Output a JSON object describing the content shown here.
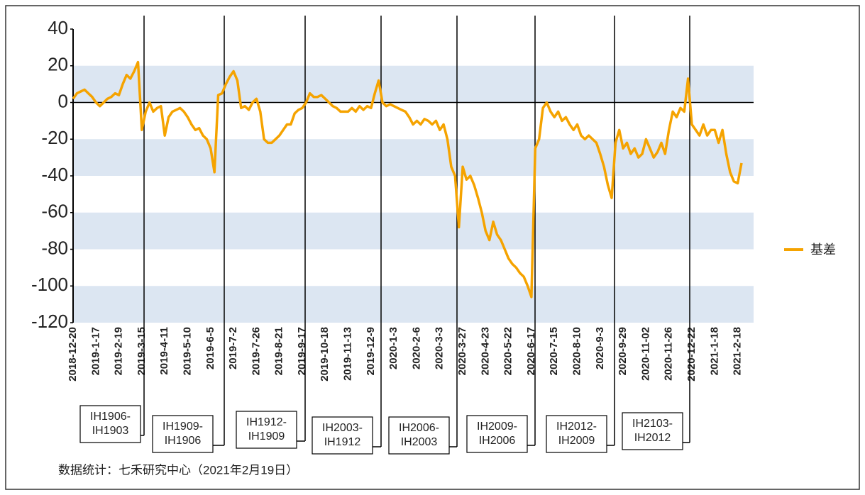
{
  "chart_data": {
    "type": "line",
    "categories": [
      "2018-12-20",
      null,
      null,
      null,
      null,
      null,
      "2019-1-17",
      null,
      null,
      null,
      null,
      null,
      "2019-2-19",
      null,
      null,
      null,
      null,
      null,
      "2019-3-15",
      null,
      null,
      null,
      null,
      null,
      "2019-4-11",
      null,
      null,
      null,
      null,
      null,
      "2019-5-10",
      null,
      null,
      null,
      null,
      null,
      "2019-6-5",
      null,
      null,
      null,
      null,
      null,
      "2019-7-2",
      null,
      null,
      null,
      null,
      null,
      "2019-7-26",
      null,
      null,
      null,
      null,
      null,
      "2019-8-21",
      null,
      null,
      null,
      null,
      null,
      "2019-9-17",
      null,
      null,
      null,
      null,
      null,
      "2019-10-18",
      null,
      null,
      null,
      null,
      null,
      "2019-11-13",
      null,
      null,
      null,
      null,
      null,
      "2019-12-9",
      null,
      null,
      null,
      null,
      null,
      "2020-1-3",
      null,
      null,
      null,
      null,
      null,
      "2020-2-6",
      null,
      null,
      null,
      null,
      null,
      "2020-3-3",
      null,
      null,
      null,
      null,
      null,
      "2020-3-27",
      null,
      null,
      null,
      null,
      null,
      "2020-4-23",
      null,
      null,
      null,
      null,
      null,
      "2020-5-22",
      null,
      null,
      null,
      null,
      null,
      "2020-6-17",
      null,
      null,
      null,
      null,
      null,
      "2020-7-15",
      null,
      null,
      null,
      null,
      null,
      "2020-8-10",
      null,
      null,
      null,
      null,
      null,
      "2020-9-3",
      null,
      null,
      null,
      null,
      null,
      "2020-9-29",
      null,
      null,
      null,
      null,
      null,
      "2020-11-02",
      null,
      null,
      null,
      null,
      null,
      "2020-11-26",
      null,
      null,
      null,
      null,
      null,
      "2020-12-22",
      null,
      null,
      null,
      null,
      null,
      "2021-1-18",
      null,
      null,
      null,
      null,
      null,
      "2021-2-18",
      null
    ],
    "series": [
      {
        "name": "基差",
        "color": "#f5a300",
        "values": [
          2,
          5,
          6,
          7,
          5,
          3,
          0,
          -2,
          0,
          2,
          3,
          5,
          4,
          10,
          15,
          13,
          17,
          22,
          -15,
          -5,
          0,
          -5,
          -3,
          -2,
          -18,
          -8,
          -5,
          -4,
          -3,
          -5,
          -8,
          -12,
          -15,
          -14,
          -18,
          -20,
          -25,
          -38,
          4,
          5,
          10,
          14,
          17,
          12,
          -3,
          -2,
          -4,
          0,
          2,
          -5,
          -20,
          -22,
          -22,
          -20,
          -18,
          -15,
          -12,
          -12,
          -6,
          -4,
          -3,
          0,
          5,
          3,
          3,
          4,
          2,
          0,
          -2,
          -3,
          -5,
          -5,
          -5,
          -3,
          -5,
          -2,
          -4,
          -2,
          -3,
          5,
          12,
          0,
          -2,
          -1,
          -2,
          -3,
          -4,
          -5,
          -8,
          -12,
          -10,
          -12,
          -9,
          -10,
          -12,
          -10,
          -15,
          -12,
          -20,
          -35,
          -40,
          -68,
          -35,
          -42,
          -40,
          -45,
          -52,
          -60,
          -70,
          -75,
          -65,
          -72,
          -75,
          -80,
          -85,
          -88,
          -90,
          -93,
          -95,
          -100,
          -106,
          -25,
          -20,
          -3,
          0,
          -5,
          -8,
          -5,
          -10,
          -8,
          -12,
          -15,
          -12,
          -18,
          -20,
          -18,
          -20,
          -22,
          -28,
          -35,
          -45,
          -52,
          -22,
          -15,
          -25,
          -22,
          -28,
          -25,
          -30,
          -28,
          -20,
          -25,
          -30,
          -27,
          -22,
          -28,
          -15,
          -5,
          -8,
          -3,
          -5,
          13,
          -12,
          -15,
          -18,
          -12,
          -18,
          -15,
          -15,
          -22,
          -15,
          -28,
          -38,
          -43,
          -44,
          -33
        ]
      }
    ],
    "ylim": [
      -120,
      40
    ],
    "yticks": [
      40,
      20,
      0,
      -20,
      -40,
      -60,
      -80,
      -100,
      -120
    ],
    "grid": "bands",
    "legend": "right",
    "annotations": [
      [
        "IH1906-",
        "IH1903"
      ],
      [
        "IH1909-",
        "IH1906"
      ],
      [
        "IH1912-",
        "IH1909"
      ],
      [
        "IH2003-",
        "IH1912"
      ],
      [
        "IH2006-",
        "IH2003"
      ],
      [
        "IH2009-",
        "IH2006"
      ],
      [
        "IH2012-",
        "IH2009"
      ],
      [
        "IH2103-",
        "IH2012"
      ]
    ],
    "source": "数据统计：七禾研究中心（2021年2月19日）"
  }
}
